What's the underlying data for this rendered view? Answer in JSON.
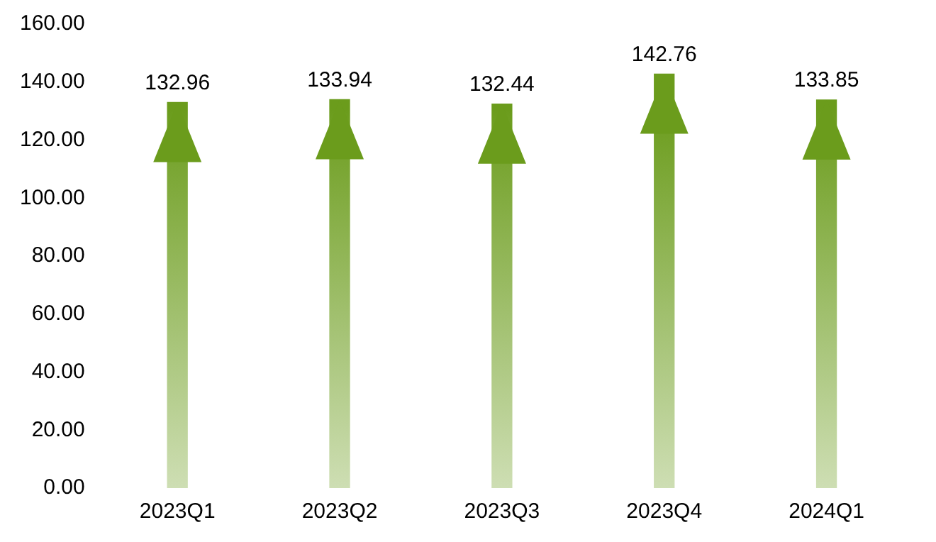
{
  "chart_data": {
    "type": "bar",
    "categories": [
      "2023Q1",
      "2023Q2",
      "2023Q3",
      "2023Q4",
      "2024Q1"
    ],
    "values": [
      132.96,
      133.94,
      132.44,
      142.76,
      133.85
    ],
    "color": "#6b9c1c",
    "data_labels": true,
    "grid": false,
    "legend": false,
    "ylim": [
      0,
      160
    ],
    "yticks": [
      {
        "value": 0,
        "label": "0.00"
      },
      {
        "value": 20,
        "label": "20.00"
      },
      {
        "value": 40,
        "label": "40.00"
      },
      {
        "value": 60,
        "label": "60.00"
      },
      {
        "value": 80,
        "label": "80.00"
      },
      {
        "value": 100,
        "label": "100.00"
      },
      {
        "value": 120,
        "label": "120.00"
      },
      {
        "value": 140,
        "label": "140.00"
      },
      {
        "value": 160,
        "label": "160.00"
      }
    ]
  }
}
